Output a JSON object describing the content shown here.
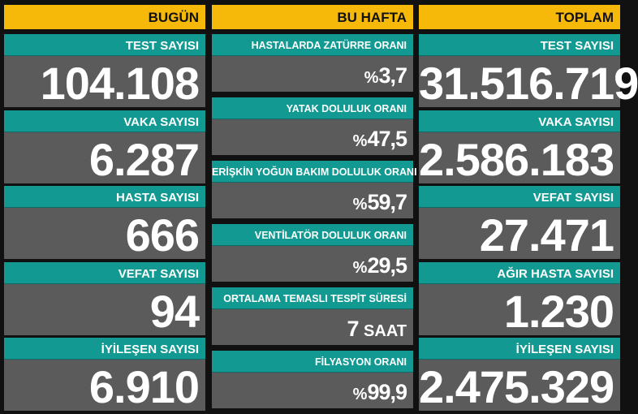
{
  "columns": [
    {
      "header": "BUGÜN",
      "items": [
        {
          "label": "TEST SAYISI",
          "value": "104.108"
        },
        {
          "label": "VAKA SAYISI",
          "value": "6.287"
        },
        {
          "label": "HASTA SAYISI",
          "value": "666"
        },
        {
          "label": "VEFAT SAYISI",
          "value": "94"
        },
        {
          "label": "İYİLEŞEN SAYISI",
          "value": "6.910"
        }
      ]
    },
    {
      "header": "BU HAFTA",
      "items": [
        {
          "label": "HASTALARDA ZATÜRRE ORANI",
          "prefix": "%",
          "value": "3,7"
        },
        {
          "label": "YATAK DOLULUK ORANI",
          "prefix": "%",
          "value": "47,5"
        },
        {
          "label": "ERİŞKİN YOĞUN BAKIM DOLULUK ORANI",
          "prefix": "%",
          "value": "59,7"
        },
        {
          "label": "VENTİLATÖR DOLULUK ORANI",
          "prefix": "%",
          "value": "29,5"
        },
        {
          "label": "ORTALAMA TEMASLI TESPİT SÜRESİ",
          "value": "7",
          "unit": "SAAT"
        },
        {
          "label": "FİLYASYON ORANI",
          "prefix": "%",
          "value": "99,9"
        }
      ]
    },
    {
      "header": "TOPLAM",
      "items": [
        {
          "label": "TEST SAYISI",
          "value": "31.516.719"
        },
        {
          "label": "VAKA SAYISI",
          "value": "2.586.183"
        },
        {
          "label": "VEFAT SAYISI",
          "value": "27.471"
        },
        {
          "label": "AĞIR HASTA SAYISI",
          "value": "1.230"
        },
        {
          "label": "İYİLEŞEN SAYISI",
          "value": "2.475.329"
        }
      ]
    }
  ]
}
